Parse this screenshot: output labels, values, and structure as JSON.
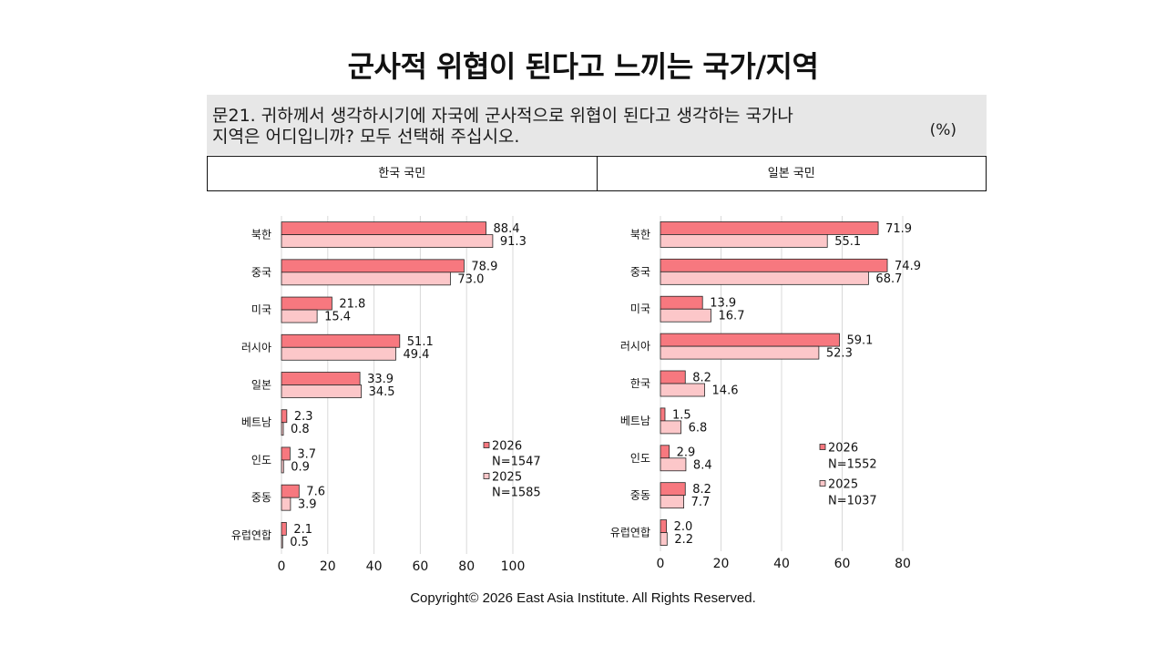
{
  "title": "군사적 위협이 된다고 느끼는 국가/지역",
  "question": {
    "lines": [
      "문21. 귀하께서 생각하시기에 자국에 군사적으로 위협이 된다고 생각하는 국가나",
      "지역은 어디입니까? 모두 선택해 주십시오."
    ],
    "unit": "(%)"
  },
  "footer": "Copyright© 2026 East Asia Institute. All Rights Reserved.",
  "colors": {
    "bar_outline": "#262626",
    "gridline": "#d9d9d9",
    "question_background": "#e7e7e7"
  },
  "chart_data": [
    {
      "type": "bar",
      "orientation": "horizontal",
      "title": "한국 국민",
      "categories": [
        "북한",
        "중국",
        "미국",
        "러시아",
        "일본",
        "베트남",
        "인도",
        "중동",
        "유럽연합"
      ],
      "series": [
        {
          "name": "2026",
          "n": "N=1547",
          "color": "#f7787f",
          "values": [
            88.4,
            78.9,
            21.8,
            51.1,
            33.9,
            2.3,
            3.7,
            7.6,
            2.1
          ]
        },
        {
          "name": "2025",
          "n": "N=1585",
          "color": "#fcc7c9",
          "values": [
            91.3,
            73.0,
            15.4,
            49.4,
            34.5,
            0.8,
            0.9,
            3.9,
            0.5
          ]
        }
      ],
      "xlim": [
        0,
        100
      ],
      "xticks": [
        0,
        20,
        40,
        60,
        80,
        100
      ],
      "grid": true,
      "legend_position": "right"
    },
    {
      "type": "bar",
      "orientation": "horizontal",
      "title": "일본 국민",
      "categories": [
        "북한",
        "중국",
        "미국",
        "러시아",
        "한국",
        "베트남",
        "인도",
        "중동",
        "유럽연합"
      ],
      "series": [
        {
          "name": "2026",
          "n": "N=1552",
          "color": "#f7787f",
          "values": [
            71.9,
            74.9,
            13.9,
            59.1,
            8.2,
            1.5,
            2.9,
            8.2,
            2.0
          ]
        },
        {
          "name": "2025",
          "n": "N=1037",
          "color": "#fcc7c9",
          "values": [
            55.1,
            68.7,
            16.7,
            52.3,
            14.6,
            6.8,
            8.4,
            7.7,
            2.2
          ]
        }
      ],
      "xlim": [
        0,
        80
      ],
      "xticks": [
        0,
        20,
        40,
        60,
        80
      ],
      "grid": true,
      "legend_position": "right"
    }
  ]
}
